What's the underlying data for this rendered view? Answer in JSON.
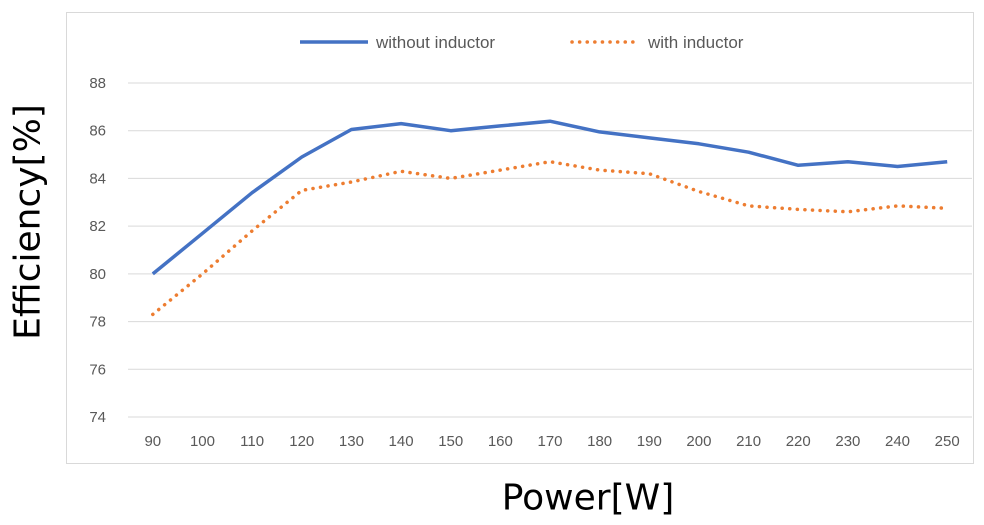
{
  "chart_data": {
    "type": "line",
    "x": [
      90,
      100,
      110,
      120,
      130,
      140,
      150,
      160,
      170,
      180,
      190,
      200,
      210,
      220,
      230,
      240,
      250
    ],
    "series": [
      {
        "name": "without inductor",
        "color": "#4472c4",
        "style": "solid",
        "values": [
          80.0,
          81.7,
          83.4,
          84.9,
          86.05,
          86.3,
          86.0,
          86.2,
          86.4,
          85.95,
          85.7,
          85.45,
          85.1,
          84.55,
          84.7,
          84.5,
          84.7
        ]
      },
      {
        "name": "with inductor",
        "color": "#ed7d31",
        "style": "dotted",
        "values": [
          78.3,
          80.0,
          81.8,
          83.5,
          83.85,
          84.3,
          84.0,
          84.35,
          84.7,
          84.35,
          84.2,
          83.45,
          82.85,
          82.7,
          82.6,
          82.85,
          82.75
        ]
      }
    ],
    "title": "",
    "xlabel": "Power[W]",
    "ylabel": "Efficiency[%]",
    "ylim": [
      74,
      88
    ],
    "yticks": [
      74,
      76,
      78,
      80,
      82,
      84,
      86,
      88
    ],
    "grid": true,
    "legend_position": "top-center"
  }
}
